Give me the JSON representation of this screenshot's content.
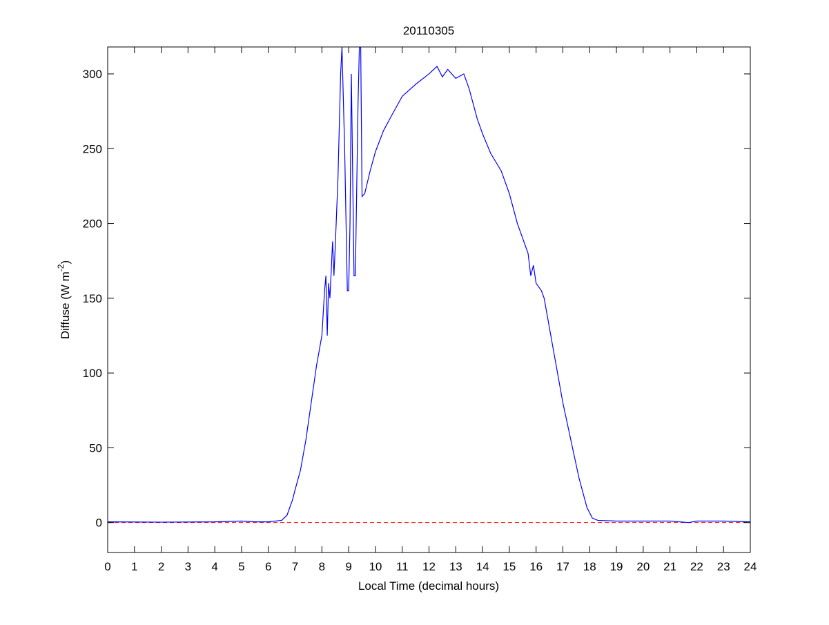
{
  "chart_data": {
    "type": "line",
    "title": "20110305",
    "xlabel": "Local Time (decimal hours)",
    "ylabel_parts": [
      "Diffuse (W m",
      "-2",
      ")"
    ],
    "x": [
      0,
      2,
      4,
      5,
      5.5,
      6,
      6.5,
      6.7,
      6.9,
      7.0,
      7.2,
      7.4,
      7.6,
      7.8,
      8.0,
      8.1,
      8.15,
      8.2,
      8.25,
      8.3,
      8.4,
      8.45,
      8.5,
      8.6,
      8.7,
      8.75,
      8.85,
      8.95,
      9.0,
      9.05,
      9.1,
      9.2,
      9.25,
      9.35,
      9.4,
      9.45,
      9.5,
      9.6,
      9.8,
      10,
      10.3,
      10.6,
      11,
      11.5,
      12,
      12.3,
      12.5,
      12.7,
      13,
      13.3,
      13.5,
      13.8,
      14,
      14.3,
      14.7,
      15,
      15.3,
      15.5,
      15.7,
      15.8,
      15.9,
      16,
      16.2,
      16.3,
      16.5,
      16.6,
      16.8,
      17,
      17.3,
      17.6,
      17.9,
      18.1,
      18.3,
      19,
      20,
      21,
      21.7,
      22,
      23,
      24
    ],
    "series": [
      {
        "name": "Diffuse",
        "color": "#0000ff",
        "values": [
          0.5,
          0.3,
          0.5,
          1,
          0.5,
          0.5,
          1.5,
          5,
          15,
          22,
          35,
          55,
          80,
          105,
          125,
          155,
          165,
          125,
          160,
          150,
          188,
          165,
          185,
          230,
          300,
          318,
          250,
          155,
          155,
          200,
          300,
          165,
          165,
          280,
          318,
          318,
          218,
          220,
          235,
          248,
          262,
          272,
          285,
          293,
          300,
          305,
          298,
          303,
          297,
          300,
          290,
          270,
          260,
          247,
          235,
          220,
          200,
          190,
          180,
          165,
          172,
          160,
          155,
          150,
          130,
          120,
          100,
          80,
          55,
          30,
          10,
          3,
          1.5,
          1,
          1,
          1,
          0,
          1,
          1,
          0.5
        ]
      }
    ],
    "reference_line": {
      "value": 0,
      "color": "#ff0000",
      "style": "dashed"
    },
    "xlim": [
      0,
      24
    ],
    "xticks": [
      0,
      1,
      2,
      3,
      4,
      5,
      6,
      7,
      8,
      9,
      10,
      11,
      12,
      13,
      14,
      15,
      16,
      17,
      18,
      19,
      20,
      21,
      22,
      23,
      24
    ],
    "ylim": [
      -20,
      318
    ],
    "yticks": [
      0,
      50,
      100,
      150,
      200,
      250,
      300
    ],
    "grid": false
  }
}
